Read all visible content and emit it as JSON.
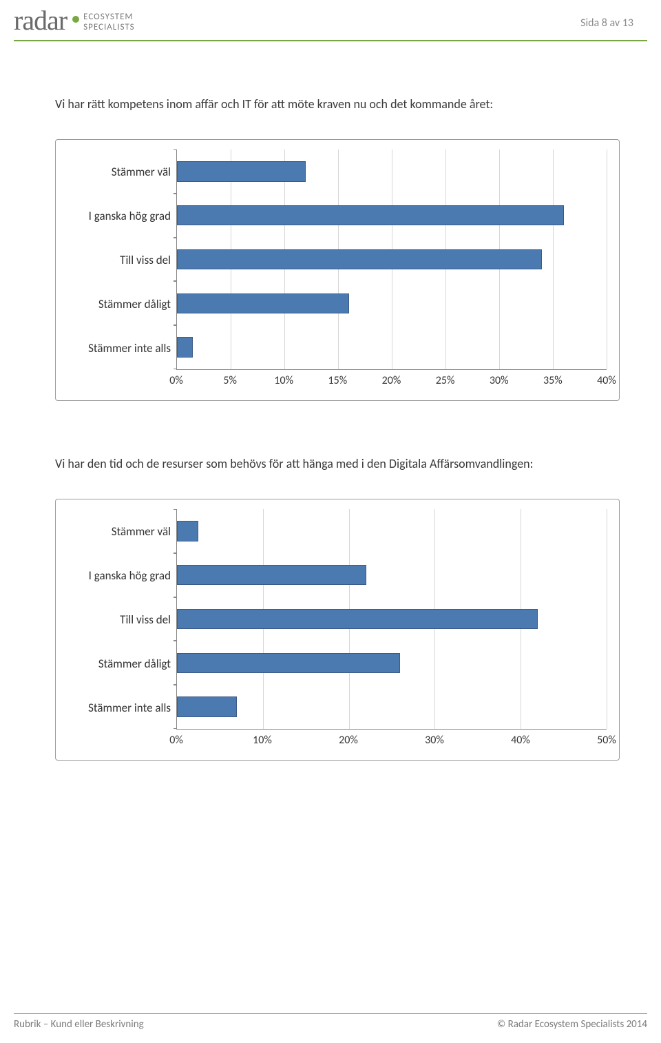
{
  "header": {
    "logo_text": "radar",
    "logo_sub1": "ECOSYSTEM",
    "logo_sub2": "SPECIALISTS",
    "page_label": "Sida 8 av 13",
    "accent_color": "#79a843"
  },
  "footer": {
    "left": "Rubrik – Kund eller Beskrivning",
    "right": "© Radar Ecosystem Specialists 2014"
  },
  "chart1": {
    "title": "Vi har rätt kompetens inom affär och IT för att möte kraven nu och det kommande året:",
    "type": "bar-horizontal",
    "categories": [
      "Stämmer väl",
      "I ganska hög grad",
      "Till viss del",
      "Stämmer dåligt",
      "Stämmer inte alls"
    ],
    "values": [
      12,
      36,
      34,
      16,
      1.5
    ],
    "xmin": 0,
    "xmax": 40,
    "xstep": 5,
    "xticks": [
      "0%",
      "5%",
      "10%",
      "15%",
      "20%",
      "25%",
      "30%",
      "35%",
      "40%"
    ],
    "bar_color": "#4a7ab0",
    "bar_border": "#3a5a88",
    "grid_color": "#d6d6d6",
    "label_fontsize": 17
  },
  "chart2": {
    "title": "Vi har den tid och de resurser som behövs för att hänga med i den Digitala Affärsomvandlingen:",
    "type": "bar-horizontal",
    "categories": [
      "Stämmer väl",
      "I ganska hög grad",
      "Till viss del",
      "Stämmer dåligt",
      "Stämmer inte alls"
    ],
    "values": [
      2.5,
      22,
      42,
      26,
      7
    ],
    "xmin": 0,
    "xmax": 50,
    "xstep": 10,
    "xticks": [
      "0%",
      "10%",
      "20%",
      "30%",
      "40%",
      "50%"
    ],
    "bar_color": "#4a7ab0",
    "bar_border": "#3a5a88",
    "grid_color": "#d6d6d6",
    "label_fontsize": 17
  }
}
